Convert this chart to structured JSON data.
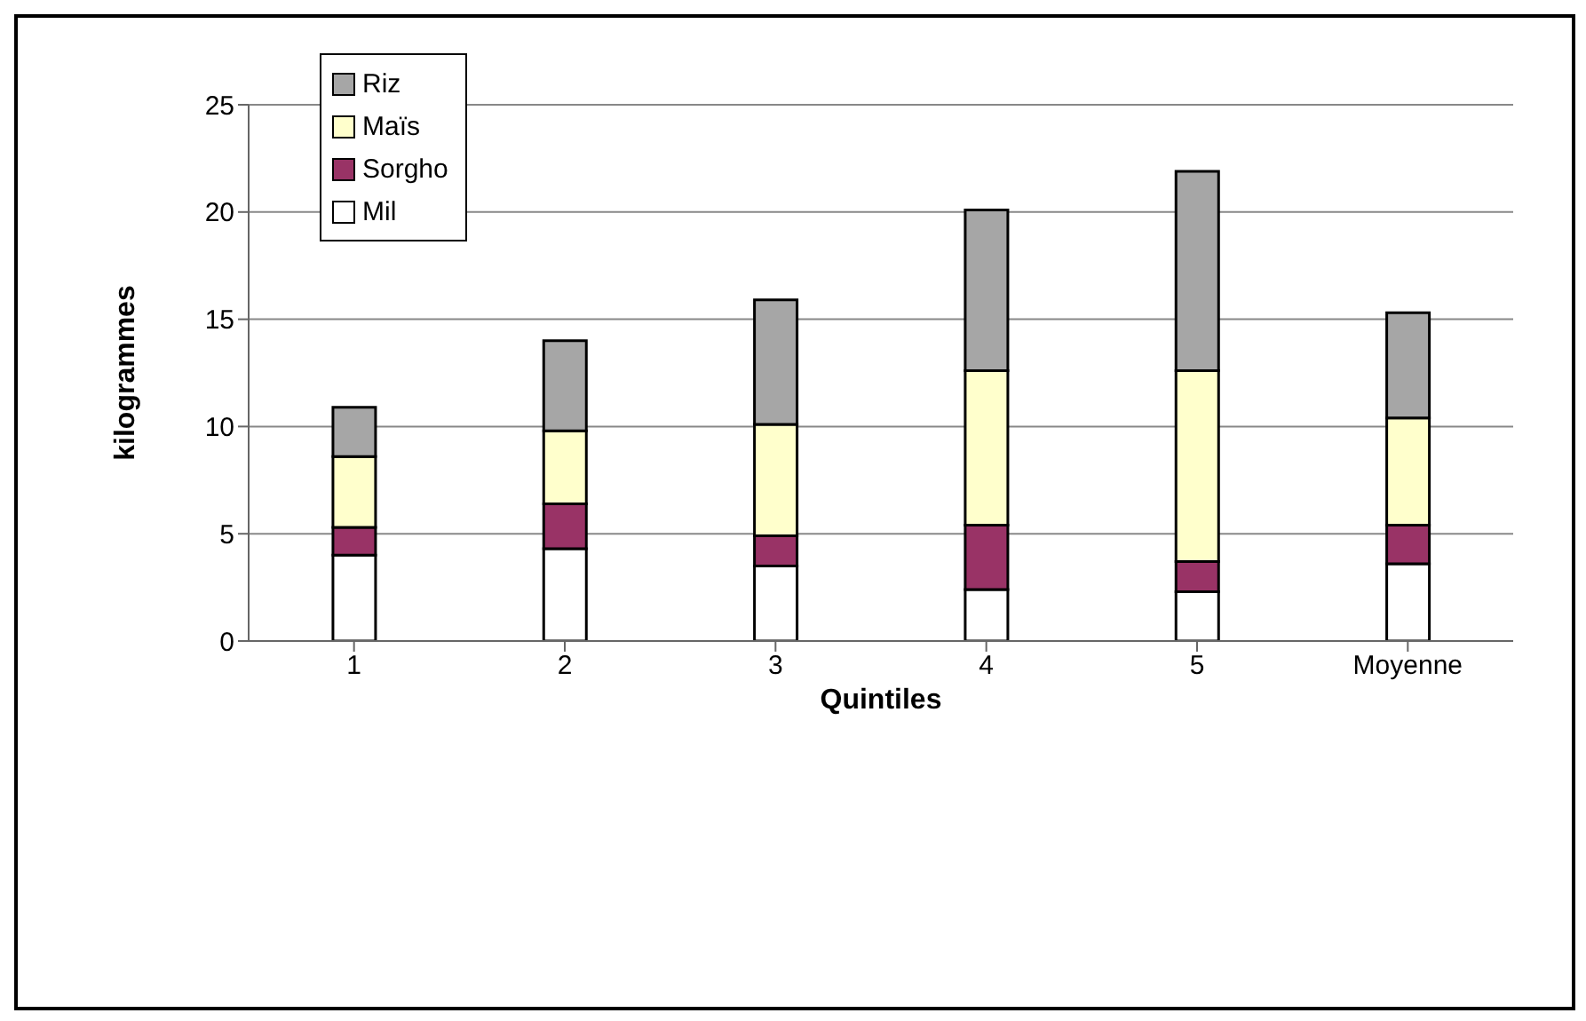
{
  "chart_data": {
    "type": "bar",
    "stacked": true,
    "xlabel": "Quintiles",
    "ylabel": "kilogrammes",
    "categories": [
      "1",
      "2",
      "3",
      "4",
      "5",
      "Moyenne"
    ],
    "series": [
      {
        "name": "Mil",
        "color": "#ffffff",
        "values": [
          4.0,
          4.3,
          3.5,
          2.4,
          2.3,
          3.6
        ]
      },
      {
        "name": "Sorgho",
        "color": "#993366",
        "values": [
          1.3,
          2.1,
          1.4,
          3.0,
          1.4,
          1.8
        ]
      },
      {
        "name": "Maïs",
        "color": "#ffffcc",
        "values": [
          3.3,
          3.4,
          5.2,
          7.2,
          8.9,
          5.0
        ]
      },
      {
        "name": "Riz",
        "color": "#a6a6a6",
        "values": [
          2.3,
          4.2,
          5.8,
          7.5,
          9.3,
          4.9
        ]
      }
    ],
    "ylim": [
      0,
      25
    ],
    "yticks": [
      0,
      5,
      10,
      15,
      20,
      25
    ],
    "grid": "y",
    "legend": "top left"
  }
}
